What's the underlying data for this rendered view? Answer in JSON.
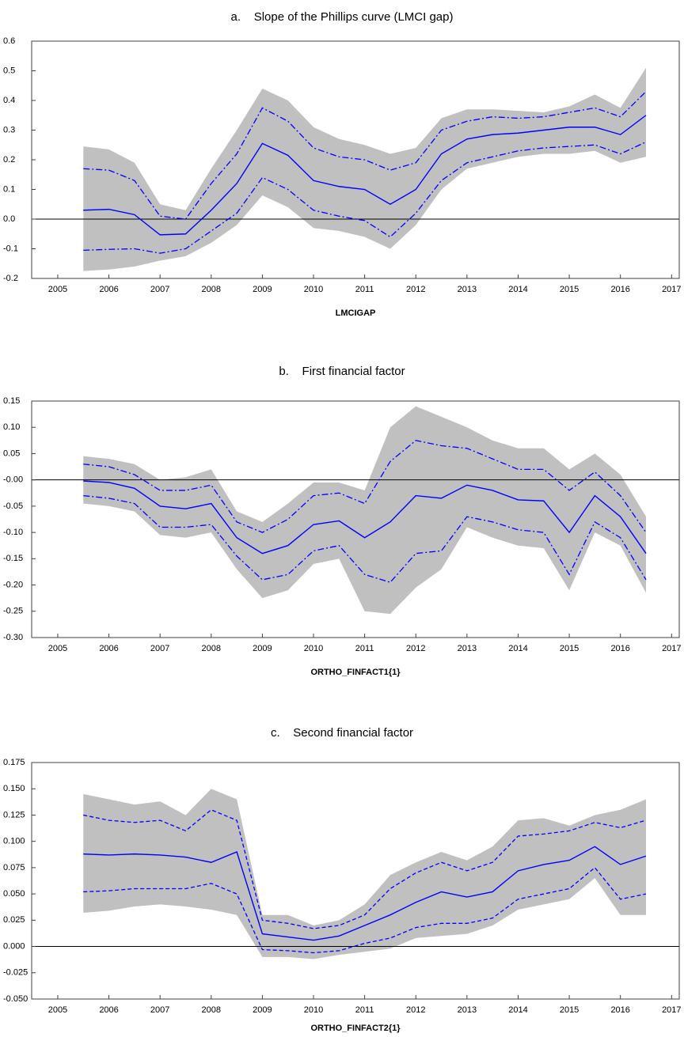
{
  "chart_data": [
    {
      "type": "band-line",
      "title": "a.    Slope of the Phillips curve (LMCI gap)",
      "x_label": "LMCIGAP",
      "x": [
        2005.5,
        2006,
        2006.5,
        2007,
        2007.5,
        2008,
        2008.5,
        2009,
        2009.5,
        2010,
        2010.5,
        2011,
        2011.5,
        2012,
        2012.5,
        2013,
        2013.5,
        2014,
        2014.5,
        2015,
        2015.5,
        2016,
        2016.5
      ],
      "xlim": [
        2004.49,
        2017.15
      ],
      "xticks": [
        2005,
        2006,
        2007,
        2008,
        2009,
        2010,
        2011,
        2012,
        2013,
        2014,
        2015,
        2016,
        2017
      ],
      "ylim": [
        -0.2,
        0.6
      ],
      "yticks": [
        -0.2,
        -0.1,
        {
          "value": 0,
          "label": "0.0"
        },
        0.1,
        0.2,
        0.3,
        0.4,
        0.5,
        0.6
      ],
      "zero_line": true,
      "band": {
        "color": "#c0c0c0",
        "upper": [
          0.245,
          0.235,
          0.19,
          0.05,
          0.03,
          0.17,
          0.3,
          0.44,
          0.4,
          0.31,
          0.27,
          0.25,
          0.22,
          0.24,
          0.34,
          0.37,
          0.37,
          0.365,
          0.36,
          0.38,
          0.42,
          0.375,
          0.51
        ],
        "lower": [
          -0.175,
          -0.17,
          -0.16,
          -0.14,
          -0.125,
          -0.08,
          -0.02,
          0.08,
          0.04,
          -0.03,
          -0.04,
          -0.06,
          -0.1,
          -0.02,
          0.1,
          0.17,
          0.19,
          0.21,
          0.22,
          0.22,
          0.23,
          0.19,
          0.21
        ]
      },
      "series": [
        {
          "color": "#0000ff",
          "dash": "none",
          "values": [
            0.03,
            0.033,
            0.015,
            -0.053,
            -0.05,
            0.03,
            0.12,
            0.255,
            0.215,
            0.13,
            0.11,
            0.1,
            0.05,
            0.1,
            0.22,
            0.27,
            0.285,
            0.29,
            0.3,
            0.31,
            0.31,
            0.285,
            0.35
          ]
        },
        {
          "color": "#0000ff",
          "dash": "8,3,2,3",
          "values": [
            0.17,
            0.165,
            0.13,
            0.01,
            0.0,
            0.12,
            0.22,
            0.375,
            0.33,
            0.24,
            0.21,
            0.2,
            0.165,
            0.19,
            0.3,
            0.33,
            0.345,
            0.34,
            0.345,
            0.36,
            0.375,
            0.345,
            0.43
          ]
        },
        {
          "color": "#0000ff",
          "dash": "8,3,2,3",
          "values": [
            -0.105,
            -0.102,
            -0.1,
            -0.115,
            -0.1,
            -0.04,
            0.02,
            0.14,
            0.1,
            0.03,
            0.01,
            -0.005,
            -0.06,
            0.02,
            0.13,
            0.19,
            0.21,
            0.23,
            0.24,
            0.245,
            0.25,
            0.22,
            0.26
          ]
        }
      ]
    },
    {
      "type": "band-line",
      "title": "b.    First financial factor",
      "x_label": "ORTHO_FINFACT1{1}",
      "x": [
        2005.5,
        2006,
        2006.5,
        2007,
        2007.5,
        2008,
        2008.5,
        2009,
        2009.5,
        2010,
        2010.5,
        2011,
        2011.5,
        2012,
        2012.5,
        2013,
        2013.5,
        2014,
        2014.5,
        2015,
        2015.5,
        2016,
        2016.5
      ],
      "xlim": [
        2004.49,
        2017.15
      ],
      "xticks": [
        2005,
        2006,
        2007,
        2008,
        2009,
        2010,
        2011,
        2012,
        2013,
        2014,
        2015,
        2016,
        2017
      ],
      "ylim": [
        -0.3,
        0.15
      ],
      "yticks": [
        {
          "value": -0.3,
          "label": "-0.30"
        },
        -0.25,
        {
          "value": -0.2,
          "label": "-0.20"
        },
        -0.15,
        {
          "value": -0.1,
          "label": "-0.10"
        },
        -0.05,
        {
          "value": 0,
          "label": "-0.00"
        },
        0.05,
        {
          "value": 0.1,
          "label": "0.10"
        },
        0.15
      ],
      "zero_line": true,
      "band": {
        "color": "#c0c0c0",
        "upper": [
          0.045,
          0.04,
          0.03,
          0.0,
          0.005,
          0.02,
          -0.06,
          -0.08,
          -0.045,
          -0.005,
          -0.005,
          -0.02,
          0.1,
          0.14,
          0.12,
          0.1,
          0.075,
          0.06,
          0.06,
          0.02,
          0.05,
          0.01,
          -0.07
        ],
        "lower": [
          -0.045,
          -0.05,
          -0.06,
          -0.105,
          -0.11,
          -0.1,
          -0.17,
          -0.225,
          -0.21,
          -0.16,
          -0.15,
          -0.25,
          -0.255,
          -0.205,
          -0.17,
          -0.09,
          -0.11,
          -0.125,
          -0.13,
          -0.21,
          -0.1,
          -0.125,
          -0.215
        ]
      },
      "series": [
        {
          "color": "#0000ff",
          "dash": "none",
          "values": [
            -0.002,
            -0.005,
            -0.016,
            -0.05,
            -0.055,
            -0.045,
            -0.11,
            -0.14,
            -0.125,
            -0.085,
            -0.078,
            -0.11,
            -0.08,
            -0.03,
            -0.035,
            -0.01,
            -0.02,
            -0.038,
            -0.04,
            -0.1,
            -0.03,
            -0.07,
            -0.14
          ]
        },
        {
          "color": "#0000ff",
          "dash": "8,3,2,3",
          "values": [
            0.03,
            0.025,
            0.01,
            -0.02,
            -0.02,
            -0.01,
            -0.08,
            -0.1,
            -0.075,
            -0.03,
            -0.025,
            -0.045,
            0.035,
            0.075,
            0.065,
            0.06,
            0.04,
            0.02,
            0.02,
            -0.02,
            0.015,
            -0.03,
            -0.1
          ]
        },
        {
          "color": "#0000ff",
          "dash": "8,3,2,3",
          "values": [
            -0.03,
            -0.035,
            -0.045,
            -0.09,
            -0.09,
            -0.085,
            -0.145,
            -0.19,
            -0.18,
            -0.135,
            -0.125,
            -0.18,
            -0.195,
            -0.14,
            -0.135,
            -0.07,
            -0.08,
            -0.095,
            -0.1,
            -0.18,
            -0.08,
            -0.11,
            -0.19
          ]
        }
      ]
    },
    {
      "type": "band-line",
      "title": "c.    Second financial factor",
      "x_label": "ORTHO_FINFACT2{1}",
      "x": [
        2005.5,
        2006,
        2006.5,
        2007,
        2007.5,
        2008,
        2008.5,
        2009,
        2009.5,
        2010,
        2010.5,
        2011,
        2011.5,
        2012,
        2012.5,
        2013,
        2013.5,
        2014,
        2014.5,
        2015,
        2015.5,
        2016,
        2016.5
      ],
      "xlim": [
        2004.49,
        2017.15
      ],
      "xticks": [
        2005,
        2006,
        2007,
        2008,
        2009,
        2010,
        2011,
        2012,
        2013,
        2014,
        2015,
        2016,
        2017
      ],
      "ylim": [
        -0.05,
        0.175
      ],
      "yticks": [
        {
          "value": -0.05,
          "label": "-0.050"
        },
        -0.025,
        {
          "value": 0,
          "label": "0.000"
        },
        0.025,
        {
          "value": 0.05,
          "label": "0.050"
        },
        0.075,
        {
          "value": 0.1,
          "label": "0.100"
        },
        0.125,
        {
          "value": 0.15,
          "label": "0.150"
        },
        0.175
      ],
      "zero_line": true,
      "band": {
        "color": "#c0c0c0",
        "upper": [
          0.145,
          0.14,
          0.135,
          0.138,
          0.125,
          0.15,
          0.14,
          0.03,
          0.03,
          0.02,
          0.025,
          0.04,
          0.068,
          0.08,
          0.09,
          0.082,
          0.095,
          0.12,
          0.122,
          0.115,
          0.125,
          0.13,
          0.14
        ],
        "lower": [
          0.032,
          0.034,
          0.038,
          0.04,
          0.038,
          0.035,
          0.03,
          -0.01,
          -0.01,
          -0.012,
          -0.008,
          -0.005,
          -0.002,
          0.008,
          0.01,
          0.012,
          0.02,
          0.035,
          0.04,
          0.045,
          0.065,
          0.03,
          0.03
        ]
      },
      "series": [
        {
          "color": "#0000ff",
          "dash": "none",
          "values": [
            0.088,
            0.087,
            0.088,
            0.087,
            0.085,
            0.08,
            0.09,
            0.012,
            0.009,
            0.006,
            0.01,
            0.02,
            0.03,
            0.042,
            0.052,
            0.047,
            0.052,
            0.072,
            0.078,
            0.082,
            0.095,
            0.078,
            0.086
          ]
        },
        {
          "color": "#0000ff",
          "dash": "5,3",
          "values": [
            0.125,
            0.12,
            0.118,
            0.12,
            0.11,
            0.13,
            0.12,
            0.025,
            0.022,
            0.017,
            0.02,
            0.03,
            0.055,
            0.07,
            0.08,
            0.072,
            0.08,
            0.105,
            0.107,
            0.11,
            0.118,
            0.113,
            0.12
          ]
        },
        {
          "color": "#0000ff",
          "dash": "5,3",
          "values": [
            0.052,
            0.053,
            0.055,
            0.055,
            0.055,
            0.06,
            0.05,
            -0.003,
            -0.004,
            -0.006,
            -0.004,
            0.003,
            0.008,
            0.018,
            0.022,
            0.022,
            0.027,
            0.045,
            0.05,
            0.055,
            0.075,
            0.045,
            0.05
          ]
        }
      ]
    }
  ]
}
